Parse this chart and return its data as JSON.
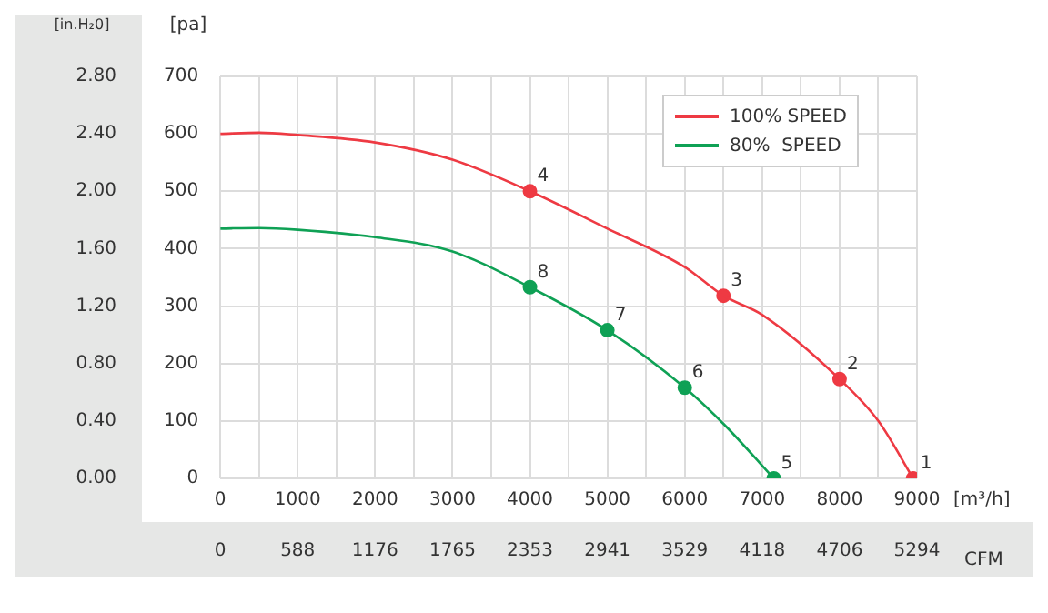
{
  "chart_data": {
    "type": "line",
    "xlabel": "[m³/h]",
    "ylabel": "[pa]",
    "y2label": "[in.H₂0]",
    "x2label": "CFM",
    "xlim": [
      0,
      9000
    ],
    "xticks": [
      0,
      {
        "value": 500,
        "label": null
      },
      1000,
      {
        "value": 1500,
        "label": null
      },
      2000,
      {
        "value": 2500,
        "label": null
      },
      3000,
      {
        "value": 3500,
        "label": null
      },
      4000,
      {
        "value": 4500,
        "label": null
      },
      5000,
      {
        "value": 5500,
        "label": null
      },
      6000,
      {
        "value": 6500,
        "label": null
      },
      7000,
      {
        "value": 7500,
        "label": null
      },
      8000,
      {
        "value": 8500,
        "label": null
      },
      9000
    ],
    "ylim": [
      0,
      700
    ],
    "yticks": [
      0,
      100,
      200,
      300,
      400,
      500,
      600,
      700
    ],
    "y2lim": [
      0,
      2.8
    ],
    "y2ticks": [
      {
        "value": 0,
        "label": "0.00"
      },
      {
        "value": 0.4,
        "label": "0.40"
      },
      {
        "value": 0.8,
        "label": "0.80"
      },
      {
        "value": 1.2,
        "label": "1.20"
      },
      {
        "value": 1.6,
        "label": "1.60"
      },
      {
        "value": 2.0,
        "label": "2.00"
      },
      {
        "value": 2.4,
        "label": "2.40"
      },
      {
        "value": 2.8,
        "label": "2.80"
      }
    ],
    "x2lim": [
      0,
      5294
    ],
    "x2ticks": [
      0,
      588,
      1176,
      1765,
      2353,
      2941,
      3529,
      4118,
      4706,
      5294
    ],
    "grid": true,
    "legend": "top right",
    "marker": "none",
    "line_style": "solid",
    "series": [
      {
        "name": "100% SPEED",
        "color": "#ee3a43",
        "x": [
          0,
          500,
          1000,
          2000,
          3000,
          4000,
          5000,
          6000,
          6500,
          7000,
          8000,
          8500,
          8950
        ],
        "values": [
          600,
          602,
          598,
          585,
          555,
          500,
          435,
          368,
          318,
          285,
          173,
          100,
          0
        ]
      },
      {
        "name": "80%  SPEED",
        "color": "#0fa155",
        "x": [
          0,
          500,
          1000,
          2000,
          3000,
          4000,
          5000,
          6000,
          6500,
          7150
        ],
        "values": [
          435,
          436,
          433,
          420,
          395,
          333,
          258,
          158,
          95,
          0
        ]
      },
      {
        "color": "#ee3a43",
        "type": "scatter",
        "marker": "circle",
        "x": [
          8950,
          8000,
          6500,
          4000
        ],
        "values": [
          0,
          173,
          318,
          500
        ]
      },
      {
        "color": "#0fa155",
        "type": "scatter",
        "marker": "circle",
        "x": [
          7150,
          6000,
          5000,
          4000
        ],
        "values": [
          0,
          158,
          258,
          333
        ]
      }
    ],
    "annotations": [
      {
        "text": "1",
        "x": 8950,
        "y": 0
      },
      {
        "text": "2",
        "x": 8000,
        "y": 173
      },
      {
        "text": "3",
        "x": 6500,
        "y": 318
      },
      {
        "text": "4",
        "x": 4000,
        "y": 500
      },
      {
        "text": "5",
        "x": 7150,
        "y": 0
      },
      {
        "text": "6",
        "x": 6000,
        "y": 158
      },
      {
        "text": "7",
        "x": 5000,
        "y": 258
      },
      {
        "text": "8",
        "x": 4000,
        "y": 333
      }
    ]
  }
}
